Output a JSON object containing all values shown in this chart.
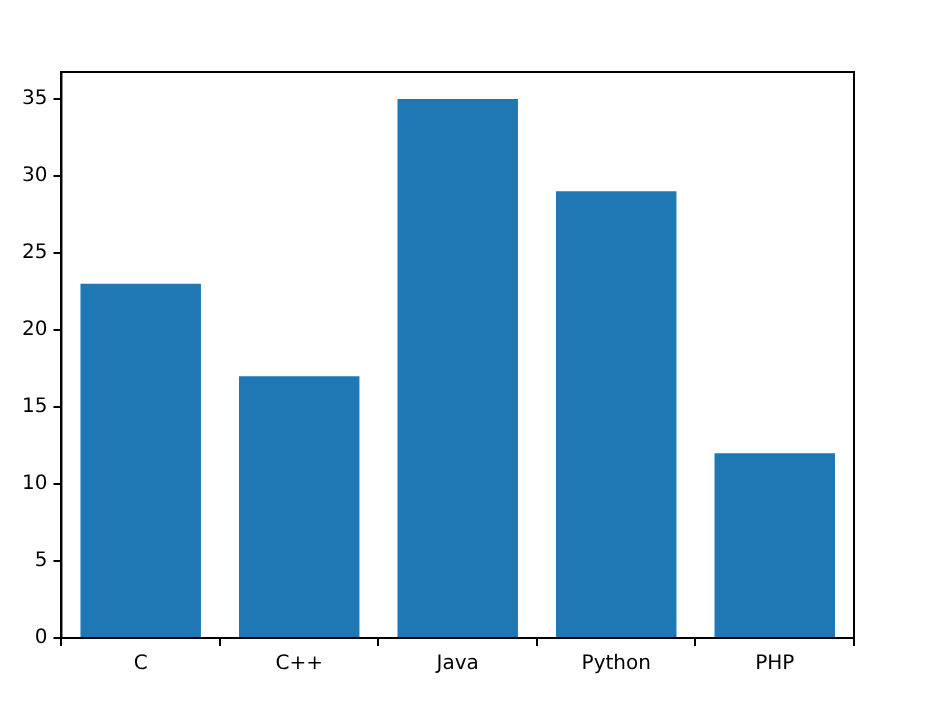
{
  "chart_data": {
    "type": "bar",
    "categories": [
      "C",
      "C++",
      "Java",
      "Python",
      "PHP"
    ],
    "values": [
      23,
      17,
      35,
      29,
      12
    ],
    "color": "#1f77b4",
    "ylim": [
      0,
      36.75
    ],
    "yticks": [
      0,
      5,
      10,
      15,
      20,
      25,
      30,
      35
    ],
    "grid": false,
    "legend": false
  }
}
